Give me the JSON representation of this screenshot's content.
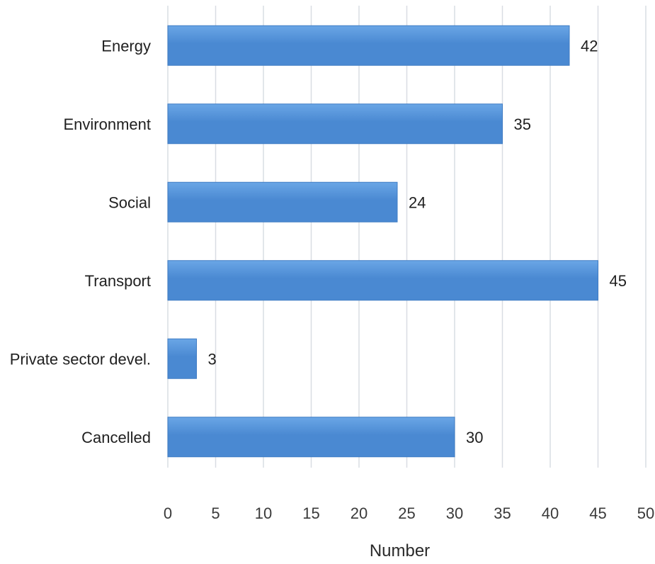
{
  "chart_data": {
    "type": "bar",
    "orientation": "horizontal",
    "categories": [
      "Energy",
      "Environment",
      "Social",
      "Transport",
      "Private sector devel.",
      "Cancelled"
    ],
    "values": [
      42,
      35,
      24,
      45,
      3,
      30
    ],
    "title": "",
    "xlabel": "Number",
    "ylabel": "",
    "xlim": [
      0,
      50
    ],
    "xticks": [
      0,
      5,
      10,
      15,
      20,
      25,
      30,
      35,
      40,
      45,
      50
    ],
    "grid": "vertical",
    "legend": "none",
    "bar_color": "#4a89d2",
    "bar_color_light": "#6aa6e6",
    "grid_color": "#d9dde3"
  }
}
